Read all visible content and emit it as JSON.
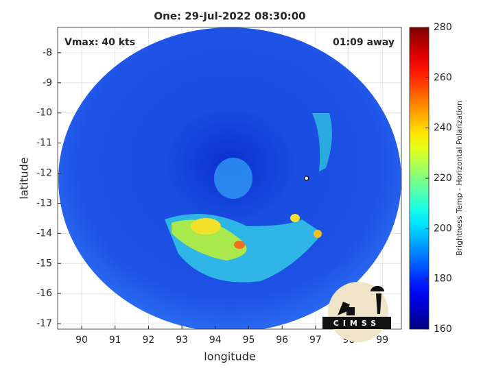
{
  "chart_data": {
    "type": "swath-map",
    "title": "One: 29-Jul-2022 08:30:00",
    "annotations": [
      "Vmax: 40 kts",
      "01:09 away"
    ],
    "xlabel": "longitude",
    "ylabel": "latitude",
    "xlim": [
      89.28,
      99.57
    ],
    "xticks": [
      90,
      91,
      92,
      93,
      94,
      95,
      96,
      97,
      98,
      99
    ],
    "ylim": [
      -17.18,
      -7.16
    ],
    "yticks": [
      -8,
      -9,
      -10,
      -11,
      -12,
      -13,
      -14,
      -15,
      -16,
      -17
    ],
    "grid": true,
    "center": {
      "x": 96.73,
      "y": -12.17
    },
    "colorbar_label": "Brightness Temp - Horizontal Polarization",
    "clim": [
      160,
      280
    ],
    "cticks": [
      160,
      180,
      200,
      220,
      240,
      260,
      280
    ],
    "colormap": "jet",
    "logo_text": "CIMSS"
  }
}
